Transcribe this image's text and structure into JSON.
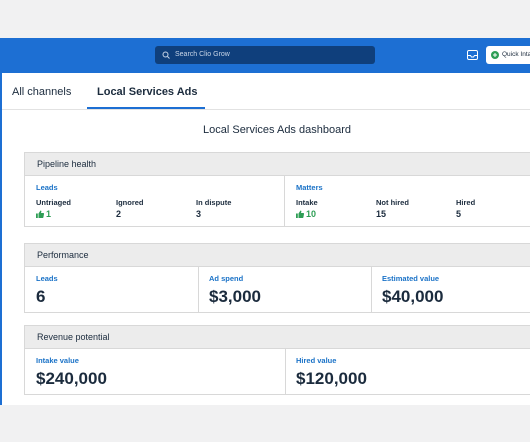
{
  "header": {
    "search_placeholder": "Search Clio Grow",
    "quick_button": "Quick Inta"
  },
  "tabs": [
    "All channels",
    "Local Services Ads"
  ],
  "title": "Local Services Ads dashboard",
  "sections": [
    {
      "title": "Pipeline health",
      "groups": [
        {
          "label": "Leads",
          "items": [
            {
              "label": "Untriaged",
              "value": 1
            },
            {
              "label": "Ignored",
              "value": 2
            },
            {
              "label": "In dispute",
              "value": 3
            }
          ]
        },
        {
          "label": "Matters",
          "items": [
            {
              "label": "Intake",
              "value": 10
            },
            {
              "label": "Not hired",
              "value": 15
            },
            {
              "label": "Hired",
              "value": 5
            }
          ]
        }
      ]
    },
    {
      "title": "Performance",
      "cards": [
        {
          "label": "Leads",
          "value": 6
        },
        {
          "label": "Ad spend",
          "value": "$3,000"
        },
        {
          "label": "Estimated value",
          "value": "$40,000"
        }
      ]
    },
    {
      "title": "Revenue potential",
      "cards": [
        {
          "label": "Intake value",
          "value": "$240,000"
        },
        {
          "label": "Hired value",
          "value": "$120,000"
        }
      ]
    }
  ]
}
